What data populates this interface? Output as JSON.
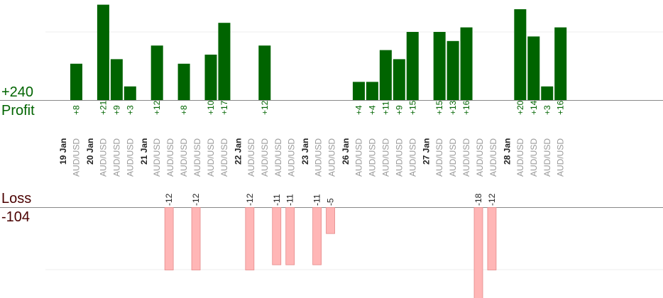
{
  "labels": {
    "profit_total": "+240",
    "profit_label": "Profit",
    "loss_label": "Loss",
    "loss_total": "-104"
  },
  "colors": {
    "profit_bar": "#006400",
    "loss_bar": "#ffb6b6",
    "profit_text": "#006400",
    "loss_text": "#4a0000",
    "axis": "#888888",
    "grid": "#eeeeee"
  },
  "chart_data": {
    "type": "bar",
    "ylim_profit": [
      0,
      15
    ],
    "ylim_loss": [
      -12,
      0
    ],
    "days": [
      {
        "date": "19 Jan",
        "trades": [
          {
            "pair": "AUD/USD",
            "value": 8
          }
        ]
      },
      {
        "date": "20 Jan",
        "trades": [
          {
            "pair": "AUD/USD",
            "value": 21
          },
          {
            "pair": "AUD/USD",
            "value": 9
          },
          {
            "pair": "AUD/USD",
            "value": 3
          }
        ]
      },
      {
        "date": "21 Jan",
        "trades": [
          {
            "pair": "AUD/USD",
            "value": 12
          },
          {
            "pair": "AUD/USD",
            "value": -12
          },
          {
            "pair": "AUD/USD",
            "value": 8
          },
          {
            "pair": "AUD/USD",
            "value": -12
          },
          {
            "pair": "AUD/USD",
            "value": 10
          },
          {
            "pair": "AUD/USD",
            "value": 17
          }
        ]
      },
      {
        "date": "22 Jan",
        "trades": [
          {
            "pair": "AUD/USD",
            "value": -12
          },
          {
            "pair": "AUD/USD",
            "value": 12
          },
          {
            "pair": "AUD/USD",
            "value": -11
          },
          {
            "pair": "AUD/USD",
            "value": -11
          }
        ]
      },
      {
        "date": "23 Jan",
        "trades": [
          {
            "pair": "AUD/USD",
            "value": -11
          },
          {
            "pair": "AUD/USD",
            "value": -5
          }
        ]
      },
      {
        "date": "26 Jan",
        "trades": [
          {
            "pair": "AUD/USD",
            "value": 4
          },
          {
            "pair": "AUD/USD",
            "value": 4
          },
          {
            "pair": "AUD/USD",
            "value": 11
          },
          {
            "pair": "AUD/USD",
            "value": 9
          },
          {
            "pair": "AUD/USD",
            "value": 15
          }
        ]
      },
      {
        "date": "27 Jan",
        "trades": [
          {
            "pair": "AUD/USD",
            "value": 15
          },
          {
            "pair": "AUD/USD",
            "value": 13
          },
          {
            "pair": "AUD/USD",
            "value": 16
          },
          {
            "pair": "AUD/USD",
            "value": -18
          },
          {
            "pair": "AUD/USD",
            "value": -12
          }
        ]
      },
      {
        "date": "28 Jan",
        "trades": [
          {
            "pair": "AUD/USD",
            "value": 20
          },
          {
            "pair": "AUD/USD",
            "value": 14
          },
          {
            "pair": "AUD/USD",
            "value": 3
          },
          {
            "pair": "AUD/USD",
            "value": 16
          }
        ]
      }
    ]
  }
}
